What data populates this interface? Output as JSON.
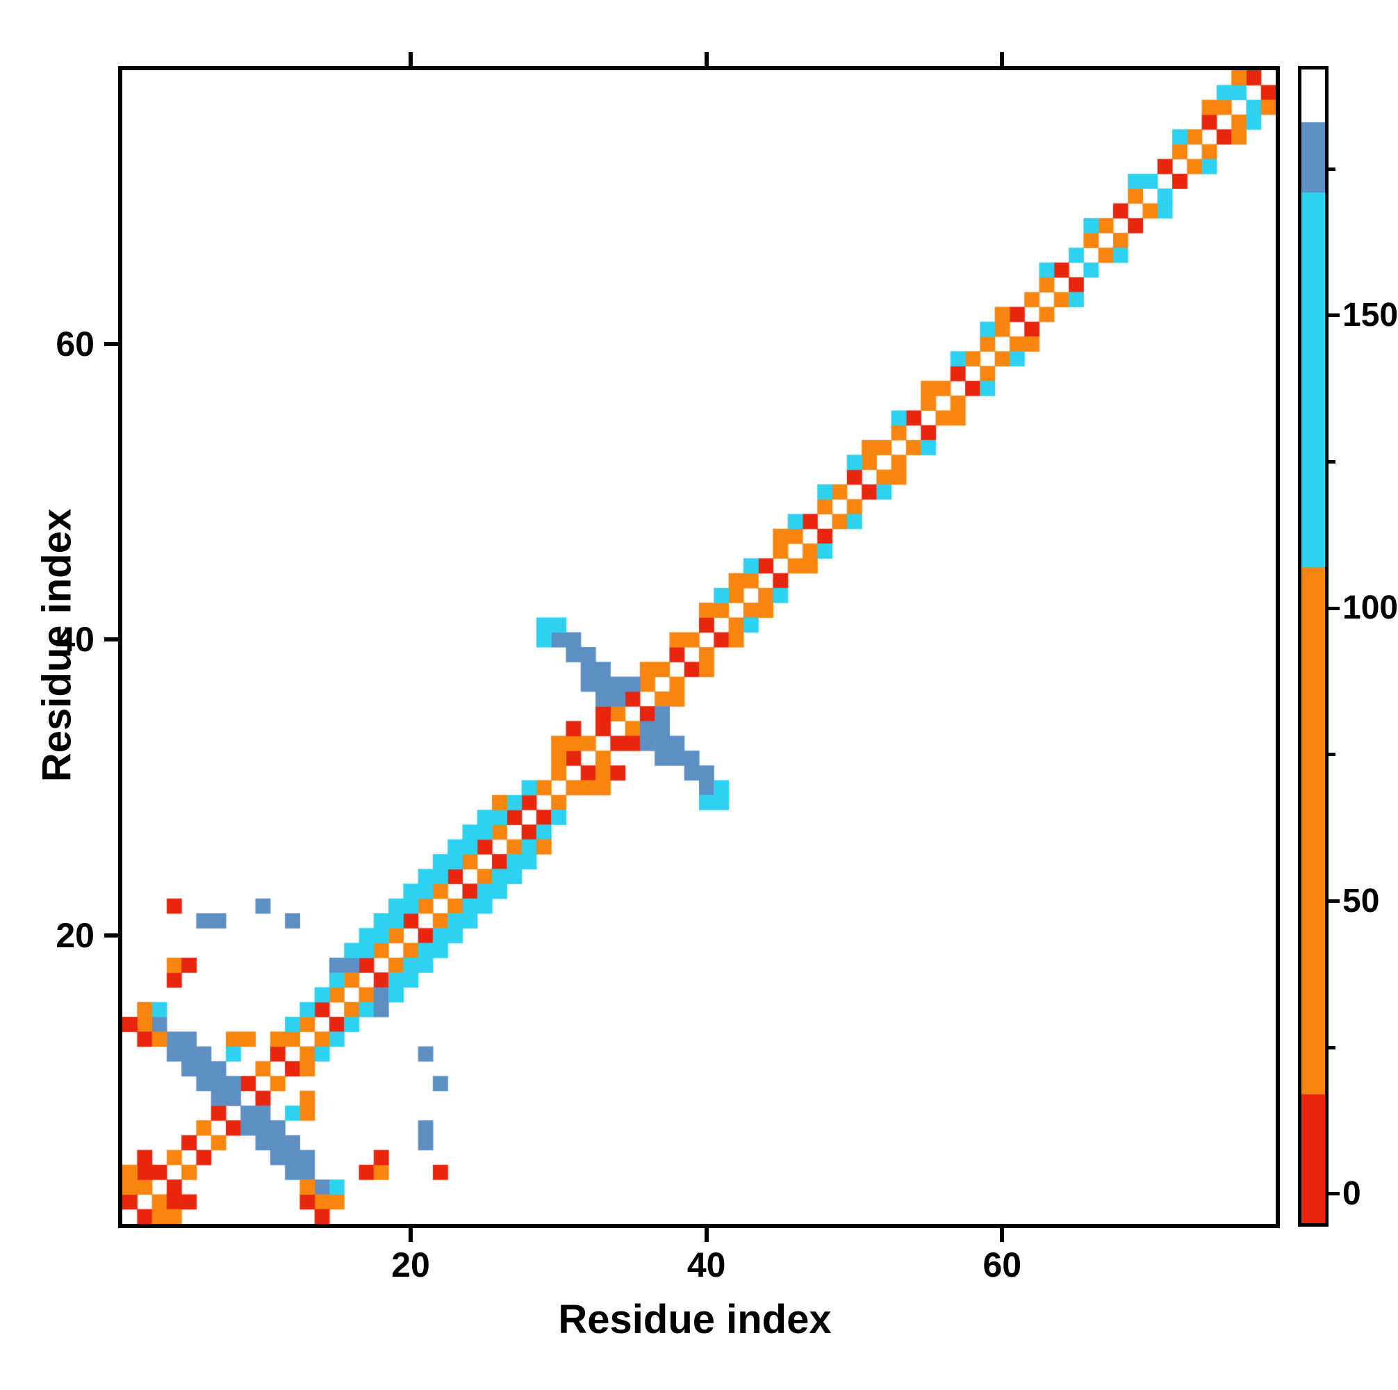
{
  "figure": {
    "background": "#ffffff"
  },
  "axes": {
    "xlabel": "Residue index",
    "ylabel": "Residue index",
    "xticks": [
      20,
      40,
      60
    ],
    "yticks": [
      20,
      40,
      60
    ]
  },
  "colorbar": {
    "vmin": -5,
    "vmax": 192,
    "major_ticks": [
      0,
      50,
      100,
      150
    ],
    "minor_ticks": [
      25,
      75,
      125,
      175
    ],
    "segments": [
      {
        "from": -5,
        "to": 17,
        "color": "#e8250d"
      },
      {
        "from": 17,
        "to": 107,
        "color": "#f8850f"
      },
      {
        "from": 107,
        "to": 171,
        "color": "#2ed1f0"
      },
      {
        "from": 171,
        "to": 183,
        "color": "#5d8fc4"
      },
      {
        "from": 183,
        "to": 192,
        "color": "#ffffff"
      }
    ]
  },
  "chart_data": {
    "type": "heatmap",
    "title": "",
    "xlabel": "Residue index",
    "ylabel": "Residue index",
    "n_residues": 78,
    "symmetric": true,
    "background_value": null,
    "color_classes": {
      "R": {
        "value": 5,
        "color": "#e8250d"
      },
      "O": {
        "value": 60,
        "color": "#f8850f"
      },
      "C": {
        "value": 140,
        "color": "#2ed1f0"
      },
      "B": {
        "value": 176,
        "color": "#5d8fc4"
      }
    },
    "cells": [
      [
        1,
        2,
        "R"
      ],
      [
        2,
        3,
        "O"
      ],
      [
        3,
        4,
        "R"
      ],
      [
        4,
        5,
        "O"
      ],
      [
        5,
        6,
        "R"
      ],
      [
        6,
        7,
        "O"
      ],
      [
        7,
        8,
        "R"
      ],
      [
        8,
        9,
        "B"
      ],
      [
        9,
        10,
        "R"
      ],
      [
        10,
        11,
        "O"
      ],
      [
        11,
        12,
        "R"
      ],
      [
        12,
        13,
        "O"
      ],
      [
        13,
        14,
        "O"
      ],
      [
        14,
        15,
        "R"
      ],
      [
        15,
        16,
        "O"
      ],
      [
        16,
        17,
        "O"
      ],
      [
        17,
        18,
        "R"
      ],
      [
        18,
        19,
        "O"
      ],
      [
        19,
        20,
        "O"
      ],
      [
        20,
        21,
        "R"
      ],
      [
        21,
        22,
        "O"
      ],
      [
        22,
        23,
        "O"
      ],
      [
        23,
        24,
        "R"
      ],
      [
        24,
        25,
        "O"
      ],
      [
        25,
        26,
        "R"
      ],
      [
        26,
        27,
        "O"
      ],
      [
        27,
        28,
        "R"
      ],
      [
        28,
        29,
        "R"
      ],
      [
        29,
        30,
        "O"
      ],
      [
        30,
        31,
        "O"
      ],
      [
        31,
        32,
        "R"
      ],
      [
        32,
        33,
        "O"
      ],
      [
        33,
        34,
        "R"
      ],
      [
        34,
        35,
        "O"
      ],
      [
        35,
        36,
        "R"
      ],
      [
        36,
        37,
        "O"
      ],
      [
        37,
        38,
        "O"
      ],
      [
        38,
        39,
        "R"
      ],
      [
        39,
        40,
        "O"
      ],
      [
        40,
        41,
        "R"
      ],
      [
        41,
        42,
        "O"
      ],
      [
        42,
        43,
        "O"
      ],
      [
        43,
        44,
        "O"
      ],
      [
        44,
        45,
        "R"
      ],
      [
        45,
        46,
        "O"
      ],
      [
        46,
        47,
        "O"
      ],
      [
        47,
        48,
        "R"
      ],
      [
        48,
        49,
        "O"
      ],
      [
        49,
        50,
        "O"
      ],
      [
        50,
        51,
        "R"
      ],
      [
        51,
        52,
        "O"
      ],
      [
        52,
        53,
        "O"
      ],
      [
        53,
        54,
        "O"
      ],
      [
        54,
        55,
        "R"
      ],
      [
        55,
        56,
        "O"
      ],
      [
        56,
        57,
        "O"
      ],
      [
        57,
        58,
        "R"
      ],
      [
        58,
        59,
        "O"
      ],
      [
        59,
        60,
        "O"
      ],
      [
        60,
        61,
        "O"
      ],
      [
        61,
        62,
        "R"
      ],
      [
        62,
        63,
        "O"
      ],
      [
        63,
        64,
        "O"
      ],
      [
        64,
        65,
        "R"
      ],
      [
        65,
        66,
        "C"
      ],
      [
        66,
        67,
        "O"
      ],
      [
        67,
        68,
        "O"
      ],
      [
        68,
        69,
        "R"
      ],
      [
        69,
        70,
        "O"
      ],
      [
        70,
        71,
        "C"
      ],
      [
        71,
        72,
        "R"
      ],
      [
        72,
        73,
        "O"
      ],
      [
        73,
        74,
        "O"
      ],
      [
        74,
        75,
        "R"
      ],
      [
        75,
        76,
        "O"
      ],
      [
        76,
        77,
        "C"
      ],
      [
        77,
        78,
        "R"
      ],
      [
        1,
        3,
        "O"
      ],
      [
        2,
        4,
        "R"
      ],
      [
        11,
        13,
        "O"
      ],
      [
        12,
        14,
        "C"
      ],
      [
        13,
        15,
        "C"
      ],
      [
        14,
        16,
        "C"
      ],
      [
        15,
        17,
        "C"
      ],
      [
        16,
        18,
        "B"
      ],
      [
        17,
        19,
        "C"
      ],
      [
        18,
        20,
        "C"
      ],
      [
        19,
        21,
        "C"
      ],
      [
        20,
        22,
        "C"
      ],
      [
        21,
        23,
        "C"
      ],
      [
        22,
        24,
        "C"
      ],
      [
        23,
        25,
        "C"
      ],
      [
        24,
        26,
        "C"
      ],
      [
        25,
        27,
        "C"
      ],
      [
        26,
        28,
        "C"
      ],
      [
        27,
        29,
        "C"
      ],
      [
        28,
        30,
        "C"
      ],
      [
        30,
        32,
        "O"
      ],
      [
        31,
        33,
        "O"
      ],
      [
        33,
        35,
        "R"
      ],
      [
        36,
        38,
        "O"
      ],
      [
        38,
        40,
        "O"
      ],
      [
        40,
        42,
        "O"
      ],
      [
        41,
        43,
        "C"
      ],
      [
        42,
        44,
        "O"
      ],
      [
        43,
        45,
        "C"
      ],
      [
        45,
        47,
        "O"
      ],
      [
        46,
        48,
        "C"
      ],
      [
        48,
        50,
        "C"
      ],
      [
        50,
        52,
        "C"
      ],
      [
        51,
        53,
        "O"
      ],
      [
        53,
        55,
        "C"
      ],
      [
        55,
        57,
        "O"
      ],
      [
        57,
        59,
        "C"
      ],
      [
        59,
        61,
        "C"
      ],
      [
        60,
        62,
        "O"
      ],
      [
        63,
        65,
        "C"
      ],
      [
        66,
        68,
        "C"
      ],
      [
        69,
        71,
        "C"
      ],
      [
        72,
        74,
        "C"
      ],
      [
        74,
        76,
        "O"
      ],
      [
        75,
        77,
        "C"
      ],
      [
        76,
        78,
        "O"
      ],
      [
        15,
        18,
        "B"
      ],
      [
        16,
        19,
        "C"
      ],
      [
        17,
        20,
        "C"
      ],
      [
        18,
        21,
        "C"
      ],
      [
        19,
        22,
        "C"
      ],
      [
        20,
        23,
        "C"
      ],
      [
        21,
        24,
        "C"
      ],
      [
        22,
        25,
        "C"
      ],
      [
        23,
        26,
        "C"
      ],
      [
        24,
        27,
        "C"
      ],
      [
        25,
        28,
        "C"
      ],
      [
        26,
        29,
        "O"
      ],
      [
        3,
        14,
        "B"
      ],
      [
        4,
        13,
        "B"
      ],
      [
        5,
        12,
        "B"
      ],
      [
        6,
        11,
        "B"
      ],
      [
        7,
        10,
        "B"
      ],
      [
        4,
        12,
        "B"
      ],
      [
        5,
        11,
        "B"
      ],
      [
        6,
        10,
        "B"
      ],
      [
        7,
        9,
        "B"
      ],
      [
        5,
        13,
        "B"
      ],
      [
        6,
        12,
        "B"
      ],
      [
        7,
        11,
        "B"
      ],
      [
        8,
        10,
        "B"
      ],
      [
        2,
        15,
        "O"
      ],
      [
        2,
        14,
        "O"
      ],
      [
        3,
        15,
        "C"
      ],
      [
        2,
        13,
        "R"
      ],
      [
        3,
        13,
        "O"
      ],
      [
        1,
        14,
        "R"
      ],
      [
        1,
        4,
        "O"
      ],
      [
        2,
        5,
        "R"
      ],
      [
        4,
        17,
        "R"
      ],
      [
        4,
        18,
        "O"
      ],
      [
        5,
        18,
        "R"
      ],
      [
        6,
        21,
        "B"
      ],
      [
        7,
        21,
        "B"
      ],
      [
        4,
        22,
        "R"
      ],
      [
        12,
        21,
        "B"
      ],
      [
        10,
        22,
        "B"
      ],
      [
        8,
        13,
        "O"
      ],
      [
        9,
        13,
        "O"
      ],
      [
        8,
        12,
        "C"
      ],
      [
        30,
        40,
        "B"
      ],
      [
        31,
        39,
        "B"
      ],
      [
        32,
        38,
        "B"
      ],
      [
        33,
        37,
        "B"
      ],
      [
        34,
        36,
        "B"
      ],
      [
        31,
        40,
        "B"
      ],
      [
        32,
        39,
        "B"
      ],
      [
        33,
        38,
        "B"
      ],
      [
        34,
        37,
        "B"
      ],
      [
        35,
        37,
        "B"
      ],
      [
        32,
        37,
        "B"
      ],
      [
        33,
        36,
        "B"
      ],
      [
        29,
        40,
        "C"
      ],
      [
        30,
        41,
        "C"
      ],
      [
        29,
        41,
        "C"
      ],
      [
        31,
        34,
        "R"
      ],
      [
        30,
        33,
        "O"
      ]
    ]
  }
}
